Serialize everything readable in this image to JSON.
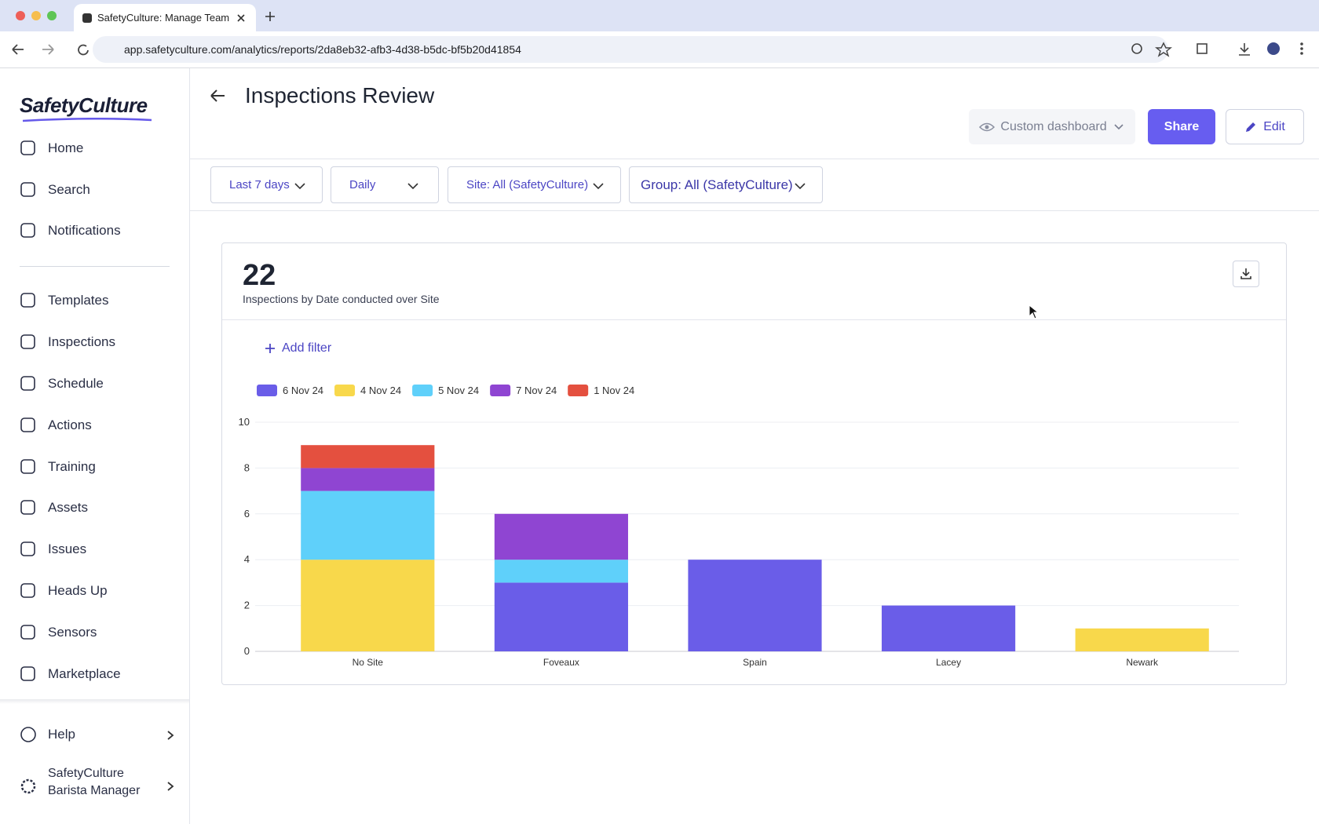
{
  "browser": {
    "tab_title": "SafetyCulture: Manage Teams",
    "url": "app.safetyculture.com/analytics/reports/2da8eb32-afb3-4d38-b5dc-bf5b20d41854"
  },
  "sidebar": {
    "logo": "SafetyCulture",
    "nav": [
      "Home",
      "Search",
      "Notifications",
      "Templates",
      "Inspections",
      "Schedule",
      "Actions",
      "Training",
      "Assets",
      "Issues",
      "Heads Up",
      "Sensors",
      "Marketplace"
    ],
    "help": "Help",
    "account": [
      "SafetyCulture",
      "Barista Manager"
    ]
  },
  "header": {
    "title": "Inspections Review",
    "view": "Custom dashboard",
    "share": "Share",
    "edit": "Edit"
  },
  "filters": [
    "Last 7 days",
    "Daily",
    "Site: All (SafetyCulture)",
    "Group: All (SafetyCulture)"
  ],
  "card": {
    "count": "22",
    "subtitle": "Inspections by Date conducted over Site",
    "add_filter": "Add filter"
  },
  "chart_data": {
    "type": "stacked_bar",
    "categories": [
      "No Site",
      "Foveaux",
      "Spain",
      "Lacey",
      "Newark"
    ],
    "series": [
      {
        "name": "6 Nov 24",
        "color": "#6a5de8",
        "values": [
          0,
          3,
          4,
          2,
          0
        ]
      },
      {
        "name": "4 Nov 24",
        "color": "#f8d84b",
        "values": [
          4,
          0,
          0,
          0,
          1
        ]
      },
      {
        "name": "5 Nov 24",
        "color": "#5fd0fa",
        "values": [
          3,
          1,
          0,
          0,
          0
        ]
      },
      {
        "name": "7 Nov 24",
        "color": "#8f45d2",
        "values": [
          1,
          2,
          0,
          0,
          0
        ]
      },
      {
        "name": "1 Nov 24",
        "color": "#e4503f",
        "values": [
          1,
          0,
          0,
          0,
          0
        ]
      }
    ],
    "ylim": [
      0,
      10
    ],
    "yticks": [
      0,
      2,
      4,
      6,
      8,
      10
    ],
    "grid": true,
    "legend": "top-left"
  }
}
